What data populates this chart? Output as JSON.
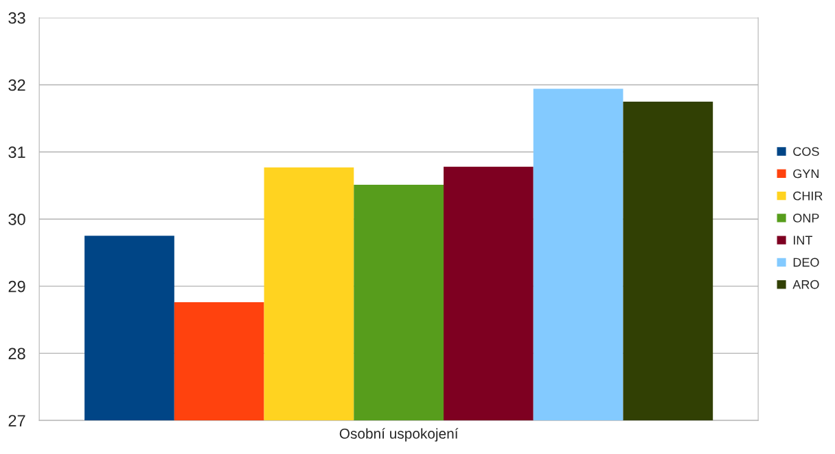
{
  "chart_data": {
    "type": "bar",
    "categories": [
      "Osobní uspokojení"
    ],
    "series": [
      {
        "name": "COS",
        "color": "#004586",
        "values": [
          29.75
        ]
      },
      {
        "name": "GYN",
        "color": "#ff420e",
        "values": [
          28.76
        ]
      },
      {
        "name": "CHIR",
        "color": "#ffd320",
        "values": [
          30.77
        ]
      },
      {
        "name": "ONP",
        "color": "#579d1c",
        "values": [
          30.51
        ]
      },
      {
        "name": "INT",
        "color": "#7e0021",
        "values": [
          30.78
        ]
      },
      {
        "name": "DEO",
        "color": "#83caff",
        "values": [
          31.94
        ]
      },
      {
        "name": "ARO",
        "color": "#314004",
        "values": [
          31.75
        ]
      }
    ],
    "ylim": [
      27,
      33
    ],
    "yticks": [
      27,
      28,
      29,
      30,
      31,
      32,
      33
    ],
    "grid": "y",
    "legend": "right"
  }
}
